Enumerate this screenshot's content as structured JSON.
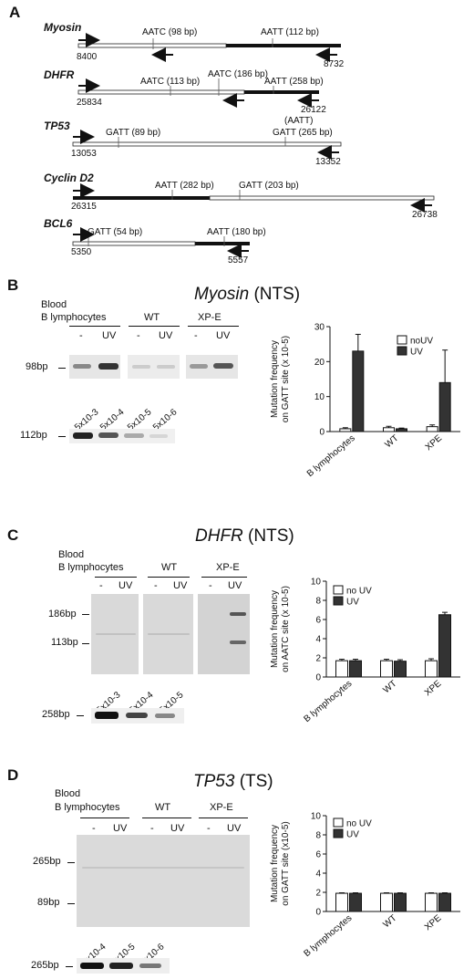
{
  "panel_a": {
    "letter": "A",
    "genes": [
      {
        "name": "Myosin",
        "sites": [
          {
            "label": "AATC (98 bp)"
          },
          {
            "label": "AATT (112 bp)"
          }
        ],
        "start": "8400",
        "end": "8732"
      },
      {
        "name": "DHFR",
        "sites": [
          {
            "label": "AATC (113 bp)"
          },
          {
            "label": "AATC (186 bp)"
          },
          {
            "label": "AATT (258 bp)"
          }
        ],
        "start": "25834",
        "end": "26122"
      },
      {
        "name": "TP53",
        "sites": [
          {
            "label": "GATT (89 bp)"
          },
          {
            "label": "(AATT)"
          },
          {
            "label": "GATT (265 bp)"
          }
        ],
        "start": "13053",
        "end": "13352"
      },
      {
        "name": "Cyclin D2",
        "sites": [
          {
            "label": "AATT (282 bp)"
          },
          {
            "label": "GATT (203 bp)"
          }
        ],
        "start": "26315",
        "end": "26738"
      },
      {
        "name": "BCL6",
        "sites": [
          {
            "label": "GATT (54 bp)"
          },
          {
            "label": "AATT (180 bp)"
          }
        ],
        "start": "5350",
        "end": "5557"
      }
    ]
  },
  "panel_b": {
    "letter": "B",
    "title_gene": "Myosin",
    "title_strand": " (NTS)",
    "group1_line1": "Blood",
    "group1_line2": "B lymphocytes",
    "group2": "WT",
    "group3": "XP-E",
    "lane_minus": "-",
    "lane_uv": "UV",
    "marker_top": "98bp",
    "marker_bottom": "112bp",
    "dilutions": [
      "5x10-3",
      "5x10-4",
      "5x10-5",
      "5x10-6"
    ]
  },
  "panel_c": {
    "letter": "C",
    "title_gene": "DHFR",
    "title_strand": " (NTS)",
    "group1_line1": "Blood",
    "group1_line2": "B lymphocytes",
    "group2": "WT",
    "group3": "XP-E",
    "lane_minus": "-",
    "lane_uv": "UV",
    "marker_a": "186bp",
    "marker_b": "113bp",
    "marker_bottom": "258bp",
    "dilutions": [
      "5x10-3",
      "5x10-4",
      "5x10-5"
    ]
  },
  "panel_d": {
    "letter": "D",
    "title_gene": "TP53",
    "title_strand": " (TS)",
    "group1_line1": "Blood",
    "group1_line2": "B lymphocytes",
    "group2": "WT",
    "group3": "XP-E",
    "lane_minus": "-",
    "lane_uv": "UV",
    "marker_a": "265bp",
    "marker_b": "89bp",
    "marker_bottom": "265bp",
    "dilutions": [
      "5x10-4",
      "5x10-5",
      "5x10-6"
    ]
  },
  "chart_data": [
    {
      "type": "bar",
      "panel": "B",
      "categories": [
        "B lymphocytes",
        "WT",
        "XPE"
      ],
      "series": [
        {
          "name": "noUV",
          "values": [
            0.8,
            1.1,
            1.4
          ],
          "errors": [
            0.3,
            0.4,
            0.5
          ],
          "color": "#ffffff"
        },
        {
          "name": "UV",
          "values": [
            23.0,
            0.8,
            14.0
          ],
          "errors": [
            4.8,
            0.2,
            9.3
          ],
          "color": "#333333"
        }
      ],
      "ylabel": "Mutation frequency on GATT site (x 10-5)",
      "ylim": [
        0,
        30
      ],
      "yticks": [
        "0",
        "10",
        "20",
        "30"
      ],
      "legend": "top-right"
    },
    {
      "type": "bar",
      "panel": "C",
      "categories": [
        "B lymphocytes",
        "WT",
        "XPE"
      ],
      "series": [
        {
          "name": "no UV",
          "values": [
            1.7,
            1.7,
            1.7
          ],
          "errors": [
            0.15,
            0.15,
            0.2
          ],
          "color": "#ffffff"
        },
        {
          "name": "UV",
          "values": [
            1.7,
            1.65,
            6.5
          ],
          "errors": [
            0.15,
            0.15,
            0.25
          ],
          "color": "#333333"
        }
      ],
      "ylabel": "Mutation frequency on AATC site (x 10-5)",
      "ylim": [
        0,
        10
      ],
      "yticks": [
        "0",
        "2",
        "4",
        "6",
        "8",
        "10"
      ],
      "legend": "top-left"
    },
    {
      "type": "bar",
      "panel": "D",
      "categories": [
        "B lymphocytes",
        "WT",
        "XPE"
      ],
      "series": [
        {
          "name": "no UV",
          "values": [
            1.9,
            1.9,
            1.9
          ],
          "errors": [
            0.05,
            0.05,
            0.05
          ],
          "color": "#ffffff"
        },
        {
          "name": "UV",
          "values": [
            1.9,
            1.9,
            1.9
          ],
          "errors": [
            0.05,
            0.05,
            0.05
          ],
          "color": "#333333"
        }
      ],
      "ylabel": "Mutation frequency on GATT site (x10-5)",
      "ylim": [
        0,
        10
      ],
      "yticks": [
        "0",
        "2",
        "4",
        "6",
        "8",
        "10"
      ],
      "legend": "top-left"
    }
  ]
}
